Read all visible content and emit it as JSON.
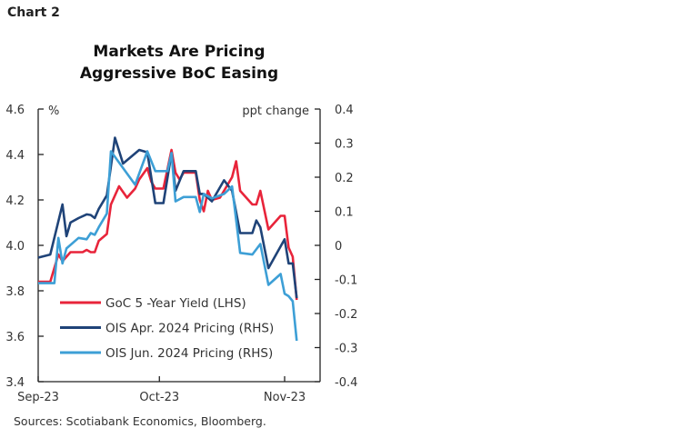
{
  "header": {
    "chart_label": "Chart 2"
  },
  "chart_data": {
    "type": "line",
    "title": "Markets Are Pricing Aggressive BoC Easing",
    "title_lines": [
      "Markets Are Pricing",
      "Aggressive BoC Easing"
    ],
    "left_axis": {
      "unit_label": "%",
      "range": [
        3.4,
        4.6
      ],
      "ticks": [
        "4.6",
        "4.4",
        "4.2",
        "4.0",
        "3.8",
        "3.6",
        "3.4"
      ]
    },
    "right_axis": {
      "unit_label": "ppt change",
      "range": [
        -0.4,
        0.4
      ],
      "ticks": [
        "0.4",
        "0.3",
        "0.2",
        "0.1",
        "0",
        "-0.1",
        "-0.2",
        "-0.3",
        "-0.4"
      ]
    },
    "x_axis": {
      "ticks": [
        {
          "label": "Sep-23",
          "date": "2023-09-01"
        },
        {
          "label": "Oct-23",
          "date": "2023-10-01"
        },
        {
          "label": "Nov-23",
          "date": "2023-11-01"
        }
      ],
      "range": [
        "2023-09-01",
        "2023-11-15"
      ]
    },
    "grid": false,
    "legend_placement": "bottom-left inside",
    "series": [
      {
        "name": "GoC 5 -Year Yield (LHS)",
        "axis": "left",
        "color": "#e8243a",
        "x": [
          "2023-09-01",
          "2023-09-04",
          "2023-09-06",
          "2023-09-07",
          "2023-09-09",
          "2023-09-12",
          "2023-09-13",
          "2023-09-14",
          "2023-09-15",
          "2023-09-16",
          "2023-09-18",
          "2023-09-19",
          "2023-09-21",
          "2023-09-23",
          "2023-09-25",
          "2023-09-26",
          "2023-09-28",
          "2023-09-29",
          "2023-09-30",
          "2023-10-02",
          "2023-10-04",
          "2023-10-05",
          "2023-10-06",
          "2023-10-07",
          "2023-10-10",
          "2023-10-11",
          "2023-10-12",
          "2023-10-13",
          "2023-10-14",
          "2023-10-16",
          "2023-10-19",
          "2023-10-20",
          "2023-10-21",
          "2023-10-24",
          "2023-10-25",
          "2023-10-26",
          "2023-10-28",
          "2023-10-29",
          "2023-10-31",
          "2023-11-01",
          "2023-11-02",
          "2023-11-03",
          "2023-11-04"
        ],
        "values": [
          3.84,
          3.84,
          3.96,
          3.93,
          3.97,
          3.97,
          3.98,
          3.97,
          3.97,
          4.02,
          4.05,
          4.18,
          4.26,
          4.21,
          4.25,
          4.29,
          4.34,
          4.28,
          4.25,
          4.25,
          4.42,
          4.32,
          4.29,
          4.32,
          4.32,
          4.2,
          4.15,
          4.24,
          4.2,
          4.21,
          4.3,
          4.37,
          4.24,
          4.18,
          4.18,
          4.24,
          4.07,
          4.09,
          4.13,
          4.13,
          3.99,
          3.95,
          3.76
        ]
      },
      {
        "name": "OIS Apr. 2024 Pricing (RHS)",
        "axis": "right",
        "color": "#1f4378",
        "x": [
          "2023-09-01",
          "2023-09-04",
          "2023-09-07",
          "2023-09-08",
          "2023-09-09",
          "2023-09-11",
          "2023-09-13",
          "2023-09-14",
          "2023-09-15",
          "2023-09-16",
          "2023-09-18",
          "2023-09-20",
          "2023-09-22",
          "2023-09-26",
          "2023-09-28",
          "2023-09-30",
          "2023-10-02",
          "2023-10-04",
          "2023-10-05",
          "2023-10-07",
          "2023-10-10",
          "2023-10-11",
          "2023-10-12",
          "2023-10-14",
          "2023-10-17",
          "2023-10-19",
          "2023-10-21",
          "2023-10-24",
          "2023-10-25",
          "2023-10-26",
          "2023-10-28",
          "2023-11-01",
          "2023-11-02",
          "2023-11-03",
          "2023-11-04"
        ],
        "values": [
          -0.036,
          -0.027,
          0.12,
          0.027,
          0.067,
          0.08,
          0.091,
          0.089,
          0.08,
          0.107,
          0.147,
          0.316,
          0.24,
          0.28,
          0.273,
          0.124,
          0.124,
          0.271,
          0.16,
          0.218,
          0.218,
          0.151,
          0.151,
          0.129,
          0.191,
          0.16,
          0.036,
          0.036,
          0.073,
          0.053,
          -0.067,
          0.018,
          -0.053,
          -0.053,
          -0.155
        ]
      },
      {
        "name": "OIS Jun. 2024 Pricing (RHS)",
        "axis": "right",
        "color": "#3d9fd6",
        "x": [
          "2023-09-01",
          "2023-09-05",
          "2023-09-06",
          "2023-09-07",
          "2023-09-08",
          "2023-09-11",
          "2023-09-13",
          "2023-09-14",
          "2023-09-15",
          "2023-09-16",
          "2023-09-18",
          "2023-09-19",
          "2023-09-25",
          "2023-09-28",
          "2023-09-30",
          "2023-10-03",
          "2023-10-04",
          "2023-10-05",
          "2023-10-07",
          "2023-10-10",
          "2023-10-11",
          "2023-10-12",
          "2023-10-14",
          "2023-10-17",
          "2023-10-19",
          "2023-10-21",
          "2023-10-24",
          "2023-10-26",
          "2023-10-28",
          "2023-10-31",
          "2023-11-01",
          "2023-11-02",
          "2023-11-03",
          "2023-11-04"
        ],
        "values": [
          -0.111,
          -0.111,
          0.022,
          -0.053,
          -0.009,
          0.022,
          0.018,
          0.036,
          0.031,
          0.053,
          0.093,
          0.276,
          0.178,
          0.276,
          0.218,
          0.218,
          0.271,
          0.129,
          0.142,
          0.142,
          0.098,
          0.151,
          0.138,
          0.151,
          0.173,
          -0.022,
          -0.027,
          0.004,
          -0.116,
          -0.084,
          -0.142,
          -0.149,
          -0.164,
          -0.28
        ]
      }
    ],
    "source": "Sources: Scotiabank Economics, Bloomberg."
  }
}
